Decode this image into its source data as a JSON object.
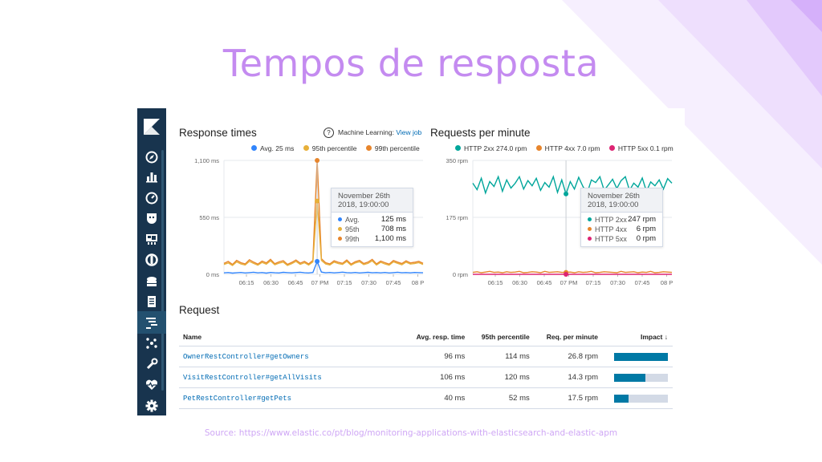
{
  "slide": {
    "title": "Tempos de resposta",
    "source": "Source: https://www.elastic.co/pt/blog/monitoring-applications-with-elasticsearch-and-elastic-apm"
  },
  "colors": {
    "title": "#c48bf0",
    "sidebar": "#18344e",
    "avg": "#3185fc",
    "p95": "#e7b03a",
    "p99": "#e7852c",
    "http2xx": "#00a69b",
    "http4xx": "#e7852c",
    "http5xx": "#dd2473",
    "link": "#006bb4",
    "impact": "#0079a5"
  },
  "sidebar": {
    "logo": "kibana-logo-icon",
    "items": [
      {
        "icon": "compass-icon"
      },
      {
        "icon": "visualize-icon"
      },
      {
        "icon": "dashboard-gauge-icon"
      },
      {
        "icon": "canvas-icon"
      },
      {
        "icon": "maps-icon"
      },
      {
        "icon": "ml-icon"
      },
      {
        "icon": "infrastructure-icon"
      },
      {
        "icon": "logs-icon"
      },
      {
        "icon": "apm-icon",
        "active": true
      },
      {
        "icon": "graph-icon"
      },
      {
        "icon": "dev-tools-wrench-icon"
      },
      {
        "icon": "monitoring-heart-icon"
      },
      {
        "icon": "settings-gear-icon"
      }
    ]
  },
  "response_panel": {
    "title": "Response times",
    "ml_label": "Machine Learning:",
    "ml_link": "View job",
    "legend": [
      {
        "label": "Avg.",
        "value": "25 ms"
      },
      {
        "label": "95th percentile",
        "value": ""
      },
      {
        "label": "99th percentile",
        "value": ""
      }
    ],
    "tooltip": {
      "date": "November 26th",
      "time": "2018, 19:00:00",
      "rows": [
        {
          "label": "Avg.",
          "value": "125 ms"
        },
        {
          "label": "95th",
          "value": "708 ms"
        },
        {
          "label": "99th",
          "value": "1,100 ms"
        }
      ]
    }
  },
  "rpm_panel": {
    "title": "Requests per minute",
    "legend": [
      {
        "label": "HTTP 2xx",
        "value": "274.0 rpm"
      },
      {
        "label": "HTTP 4xx",
        "value": "7.0 rpm"
      },
      {
        "label": "HTTP 5xx",
        "value": "0.1 rpm"
      }
    ],
    "tooltip": {
      "date": "November 26th",
      "time": "2018, 19:00:00",
      "rows": [
        {
          "label": "HTTP 2xx",
          "value": "247 rpm"
        },
        {
          "label": "HTTP 4xx",
          "value": "6 rpm"
        },
        {
          "label": "HTTP 5xx",
          "value": "0 rpm"
        }
      ]
    }
  },
  "chart_data": [
    {
      "type": "line",
      "title": "Response times",
      "xlabel": "",
      "ylabel": "",
      "y_ticks": [
        "1,100 ms",
        "550 ms",
        "0 ms"
      ],
      "x_ticks": [
        "06:15",
        "06:30",
        "06:45",
        "07 PM",
        "07:15",
        "07:30",
        "07:45",
        "08 P"
      ],
      "ylim": [
        0,
        1100
      ],
      "x": [
        "06:05",
        "06:07",
        "06:10",
        "06:12",
        "06:15",
        "06:17",
        "06:20",
        "06:22",
        "06:25",
        "06:27",
        "06:30",
        "06:32",
        "06:35",
        "06:37",
        "06:40",
        "06:42",
        "06:45",
        "06:47",
        "06:50",
        "06:52",
        "06:55",
        "06:57",
        "07:00",
        "07:02",
        "07:05",
        "07:07",
        "07:10",
        "07:12",
        "07:15",
        "07:17",
        "07:20",
        "07:22",
        "07:25",
        "07:27",
        "07:30",
        "07:32",
        "07:35",
        "07:37",
        "07:40",
        "07:42",
        "07:45",
        "07:47",
        "07:50",
        "07:52",
        "07:55",
        "07:57",
        "08:00",
        "08:02"
      ],
      "series": [
        {
          "name": "Avg.",
          "values": [
            14,
            17,
            12,
            15,
            18,
            13,
            16,
            20,
            14,
            17,
            12,
            18,
            15,
            13,
            19,
            16,
            14,
            17,
            20,
            15,
            13,
            18,
            125,
            22,
            15,
            18,
            14,
            17,
            21,
            16,
            14,
            18,
            13,
            16,
            19,
            15,
            17,
            14,
            18,
            13,
            16,
            20,
            15,
            17,
            14,
            18,
            16,
            15
          ]
        },
        {
          "name": "95th percentile",
          "values": [
            95,
            110,
            85,
            120,
            100,
            90,
            125,
            105,
            88,
            115,
            98,
            130,
            92,
            108,
            118,
            86,
            102,
            125,
            96,
            112,
            90,
            120,
            708,
            135,
            100,
            90,
            118,
            104,
            96,
            125,
            88,
            110,
            122,
            94,
            105,
            130,
            90,
            116,
            100,
            88,
            120,
            106,
            92,
            118,
            99,
            104,
            112,
            95
          ]
        },
        {
          "name": "99th percentile",
          "values": [
            105,
            125,
            95,
            135,
            112,
            100,
            140,
            118,
            98,
            128,
            110,
            145,
            102,
            120,
            132,
            96,
            115,
            138,
            108,
            125,
            100,
            134,
            1100,
            150,
            112,
            100,
            130,
            116,
            106,
            138,
            98,
            122,
            135,
            104,
            118,
            144,
            100,
            128,
            112,
            98,
            133,
            118,
            104,
            130,
            110,
            116,
            125,
            106
          ]
        }
      ]
    },
    {
      "type": "line",
      "title": "Requests per minute",
      "xlabel": "",
      "ylabel": "",
      "y_ticks": [
        "350 rpm",
        "175 rpm",
        "0 rpm"
      ],
      "x_ticks": [
        "06:15",
        "06:30",
        "06:45",
        "07 PM",
        "07:15",
        "07:30",
        "07:45",
        "08 P"
      ],
      "ylim": [
        0,
        350
      ],
      "x": [
        "06:05",
        "06:07",
        "06:10",
        "06:12",
        "06:15",
        "06:17",
        "06:20",
        "06:22",
        "06:25",
        "06:27",
        "06:30",
        "06:32",
        "06:35",
        "06:37",
        "06:40",
        "06:42",
        "06:45",
        "06:47",
        "06:50",
        "06:52",
        "06:55",
        "06:57",
        "07:00",
        "07:02",
        "07:05",
        "07:07",
        "07:10",
        "07:12",
        "07:15",
        "07:17",
        "07:20",
        "07:22",
        "07:25",
        "07:27",
        "07:30",
        "07:32",
        "07:35",
        "07:37",
        "07:40",
        "07:42",
        "07:45",
        "07:47",
        "07:50",
        "07:52",
        "07:55",
        "07:57",
        "08:00",
        "08:02"
      ],
      "series": [
        {
          "name": "HTTP 2xx",
          "values": [
            280,
            260,
            295,
            250,
            285,
            270,
            300,
            255,
            290,
            265,
            280,
            300,
            262,
            288,
            272,
            295,
            258,
            282,
            268,
            300,
            252,
            290,
            247,
            285,
            262,
            298,
            270,
            250,
            290,
            282,
            300,
            258,
            275,
            292,
            264,
            288,
            300,
            258,
            280,
            268,
            296,
            255,
            284,
            272,
            290,
            262,
            294,
            280
          ]
        },
        {
          "name": "HTTP 4xx",
          "values": [
            6,
            8,
            5,
            7,
            9,
            6,
            7,
            5,
            8,
            6,
            7,
            9,
            5,
            6,
            8,
            7,
            5,
            9,
            6,
            7,
            8,
            6,
            6,
            7,
            5,
            8,
            6,
            7,
            9,
            5,
            6,
            8,
            7,
            6,
            5,
            9,
            6,
            7,
            8,
            5,
            7,
            6,
            9,
            5,
            6,
            8,
            7,
            6
          ]
        },
        {
          "name": "HTTP 5xx",
          "values": [
            0,
            0.2,
            0,
            0.1,
            0,
            0,
            0.3,
            0,
            0.1,
            0,
            0,
            0.2,
            0,
            0,
            0.1,
            0,
            0.2,
            0,
            0,
            0.1,
            0,
            0,
            0,
            0.1,
            0,
            0.2,
            0,
            0,
            0.1,
            0,
            0,
            0.2,
            0,
            0.1,
            0,
            0,
            0.2,
            0,
            0.1,
            0,
            0,
            0.2,
            0,
            0.1,
            0,
            0,
            0.1,
            0
          ]
        }
      ]
    }
  ],
  "request_table": {
    "title": "Request",
    "columns": [
      "Name",
      "Avg. resp. time",
      "95th percentile",
      "Req. per minute",
      "Impact"
    ],
    "sort_icon": "arrow-down-icon",
    "rows": [
      {
        "name": "OwnerRestController#getOwners",
        "avg": "96 ms",
        "p95": "114 ms",
        "rpm": "26.8 rpm",
        "impact": 1.0
      },
      {
        "name": "VisitRestController#getAllVisits",
        "avg": "106 ms",
        "p95": "120 ms",
        "rpm": "14.3 rpm",
        "impact": 0.58
      },
      {
        "name": "PetRestController#getPets",
        "avg": "40 ms",
        "p95": "52 ms",
        "rpm": "17.5 rpm",
        "impact": 0.27
      }
    ]
  }
}
